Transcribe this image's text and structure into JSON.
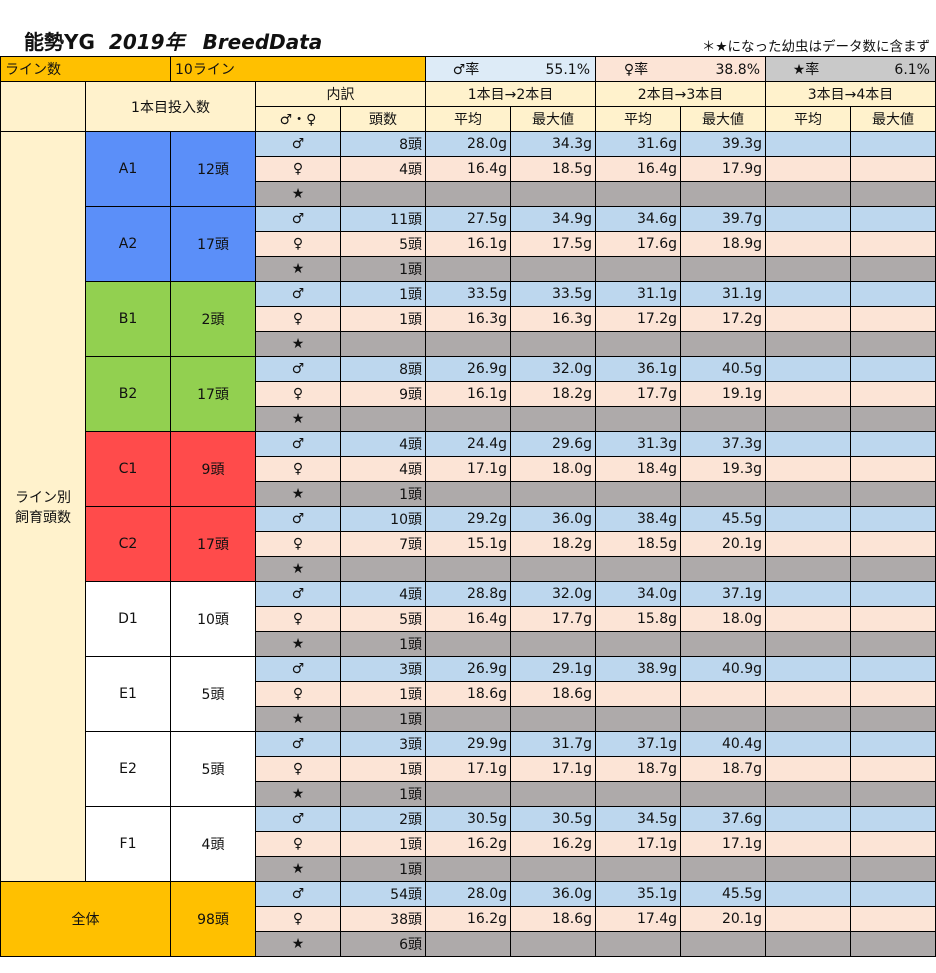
{
  "title": {
    "part1": "能勢YG",
    "part2": "2019年",
    "part3": "BreedData"
  },
  "note": "＊★になった幼虫はデータ数に含まず",
  "summary": {
    "lines_label": "ライン数",
    "lines_value": "10ライン",
    "male_rate_label": "♂率",
    "male_rate_value": "55.1%",
    "female_rate_label": "♀率",
    "female_rate_value": "38.8%",
    "star_rate_label": "★率",
    "star_rate_value": "6.1%"
  },
  "headers": {
    "first_count": "1本目投入数",
    "breakdown": "内訳",
    "sex": "♂・♀",
    "heads": "頭数",
    "stage1": "1本目→2本目",
    "stage2": "2本目→3本目",
    "stage3": "3本目→4本目",
    "avg": "平均",
    "max": "最大値"
  },
  "side_label_1": "ライン別",
  "side_label_2": "飼育頭数",
  "sex_symbols": {
    "male": "♂",
    "female": "♀",
    "star": "★"
  },
  "lines": [
    {
      "name": "A1",
      "total": "12頭",
      "color": "cA",
      "male": {
        "count": "8頭",
        "s1avg": "28.0g",
        "s1max": "34.3g",
        "s2avg": "31.6g",
        "s2max": "39.3g"
      },
      "female": {
        "count": "4頭",
        "s1avg": "16.4g",
        "s1max": "18.5g",
        "s2avg": "16.4g",
        "s2max": "17.9g"
      },
      "star": {
        "count": ""
      }
    },
    {
      "name": "A2",
      "total": "17頭",
      "color": "cA",
      "male": {
        "count": "11頭",
        "s1avg": "27.5g",
        "s1max": "34.9g",
        "s2avg": "34.6g",
        "s2max": "39.7g"
      },
      "female": {
        "count": "5頭",
        "s1avg": "16.1g",
        "s1max": "17.5g",
        "s2avg": "17.6g",
        "s2max": "18.9g"
      },
      "star": {
        "count": "1頭"
      }
    },
    {
      "name": "B1",
      "total": "2頭",
      "color": "cB",
      "male": {
        "count": "1頭",
        "s1avg": "33.5g",
        "s1max": "33.5g",
        "s2avg": "31.1g",
        "s2max": "31.1g"
      },
      "female": {
        "count": "1頭",
        "s1avg": "16.3g",
        "s1max": "16.3g",
        "s2avg": "17.2g",
        "s2max": "17.2g"
      },
      "star": {
        "count": ""
      }
    },
    {
      "name": "B2",
      "total": "17頭",
      "color": "cB",
      "male": {
        "count": "8頭",
        "s1avg": "26.9g",
        "s1max": "32.0g",
        "s2avg": "36.1g",
        "s2max": "40.5g"
      },
      "female": {
        "count": "9頭",
        "s1avg": "16.1g",
        "s1max": "18.2g",
        "s2avg": "17.7g",
        "s2max": "19.1g"
      },
      "star": {
        "count": ""
      }
    },
    {
      "name": "C1",
      "total": "9頭",
      "color": "cC",
      "male": {
        "count": "4頭",
        "s1avg": "24.4g",
        "s1max": "29.6g",
        "s2avg": "31.3g",
        "s2max": "37.3g"
      },
      "female": {
        "count": "4頭",
        "s1avg": "17.1g",
        "s1max": "18.0g",
        "s2avg": "18.4g",
        "s2max": "19.3g"
      },
      "star": {
        "count": "1頭"
      }
    },
    {
      "name": "C2",
      "total": "17頭",
      "color": "cC",
      "male": {
        "count": "10頭",
        "s1avg": "29.2g",
        "s1max": "36.0g",
        "s2avg": "38.4g",
        "s2max": "45.5g"
      },
      "female": {
        "count": "7頭",
        "s1avg": "15.1g",
        "s1max": "18.2g",
        "s2avg": "18.5g",
        "s2max": "20.1g"
      },
      "star": {
        "count": ""
      }
    },
    {
      "name": "D1",
      "total": "10頭",
      "color": "cW",
      "male": {
        "count": "4頭",
        "s1avg": "28.8g",
        "s1max": "32.0g",
        "s2avg": "34.0g",
        "s2max": "37.1g"
      },
      "female": {
        "count": "5頭",
        "s1avg": "16.4g",
        "s1max": "17.7g",
        "s2avg": "15.8g",
        "s2max": "18.0g"
      },
      "star": {
        "count": "1頭"
      }
    },
    {
      "name": "E1",
      "total": "5頭",
      "color": "cW",
      "male": {
        "count": "3頭",
        "s1avg": "26.9g",
        "s1max": "29.1g",
        "s2avg": "38.9g",
        "s2max": "40.9g"
      },
      "female": {
        "count": "1頭",
        "s1avg": "18.6g",
        "s1max": "18.6g",
        "s2avg": "",
        "s2max": ""
      },
      "star": {
        "count": "1頭"
      }
    },
    {
      "name": "E2",
      "total": "5頭",
      "color": "cW",
      "male": {
        "count": "3頭",
        "s1avg": "29.9g",
        "s1max": "31.7g",
        "s2avg": "37.1g",
        "s2max": "40.4g"
      },
      "female": {
        "count": "1頭",
        "s1avg": "17.1g",
        "s1max": "17.1g",
        "s2avg": "18.7g",
        "s2max": "18.7g"
      },
      "star": {
        "count": "1頭"
      }
    },
    {
      "name": "F1",
      "total": "4頭",
      "color": "cW",
      "male": {
        "count": "2頭",
        "s1avg": "30.5g",
        "s1max": "30.5g",
        "s2avg": "34.5g",
        "s2max": "37.6g"
      },
      "female": {
        "count": "1頭",
        "s1avg": "16.2g",
        "s1max": "16.2g",
        "s2avg": "17.1g",
        "s2max": "17.1g"
      },
      "star": {
        "count": "1頭"
      }
    }
  ],
  "total": {
    "name": "全体",
    "total": "98頭",
    "male": {
      "count": "54頭",
      "s1avg": "28.0g",
      "s1max": "36.0g",
      "s2avg": "35.1g",
      "s2max": "45.5g"
    },
    "female": {
      "count": "38頭",
      "s1avg": "16.2g",
      "s1max": "18.6g",
      "s2avg": "17.4g",
      "s2max": "20.1g"
    },
    "star": {
      "count": "6頭"
    }
  }
}
